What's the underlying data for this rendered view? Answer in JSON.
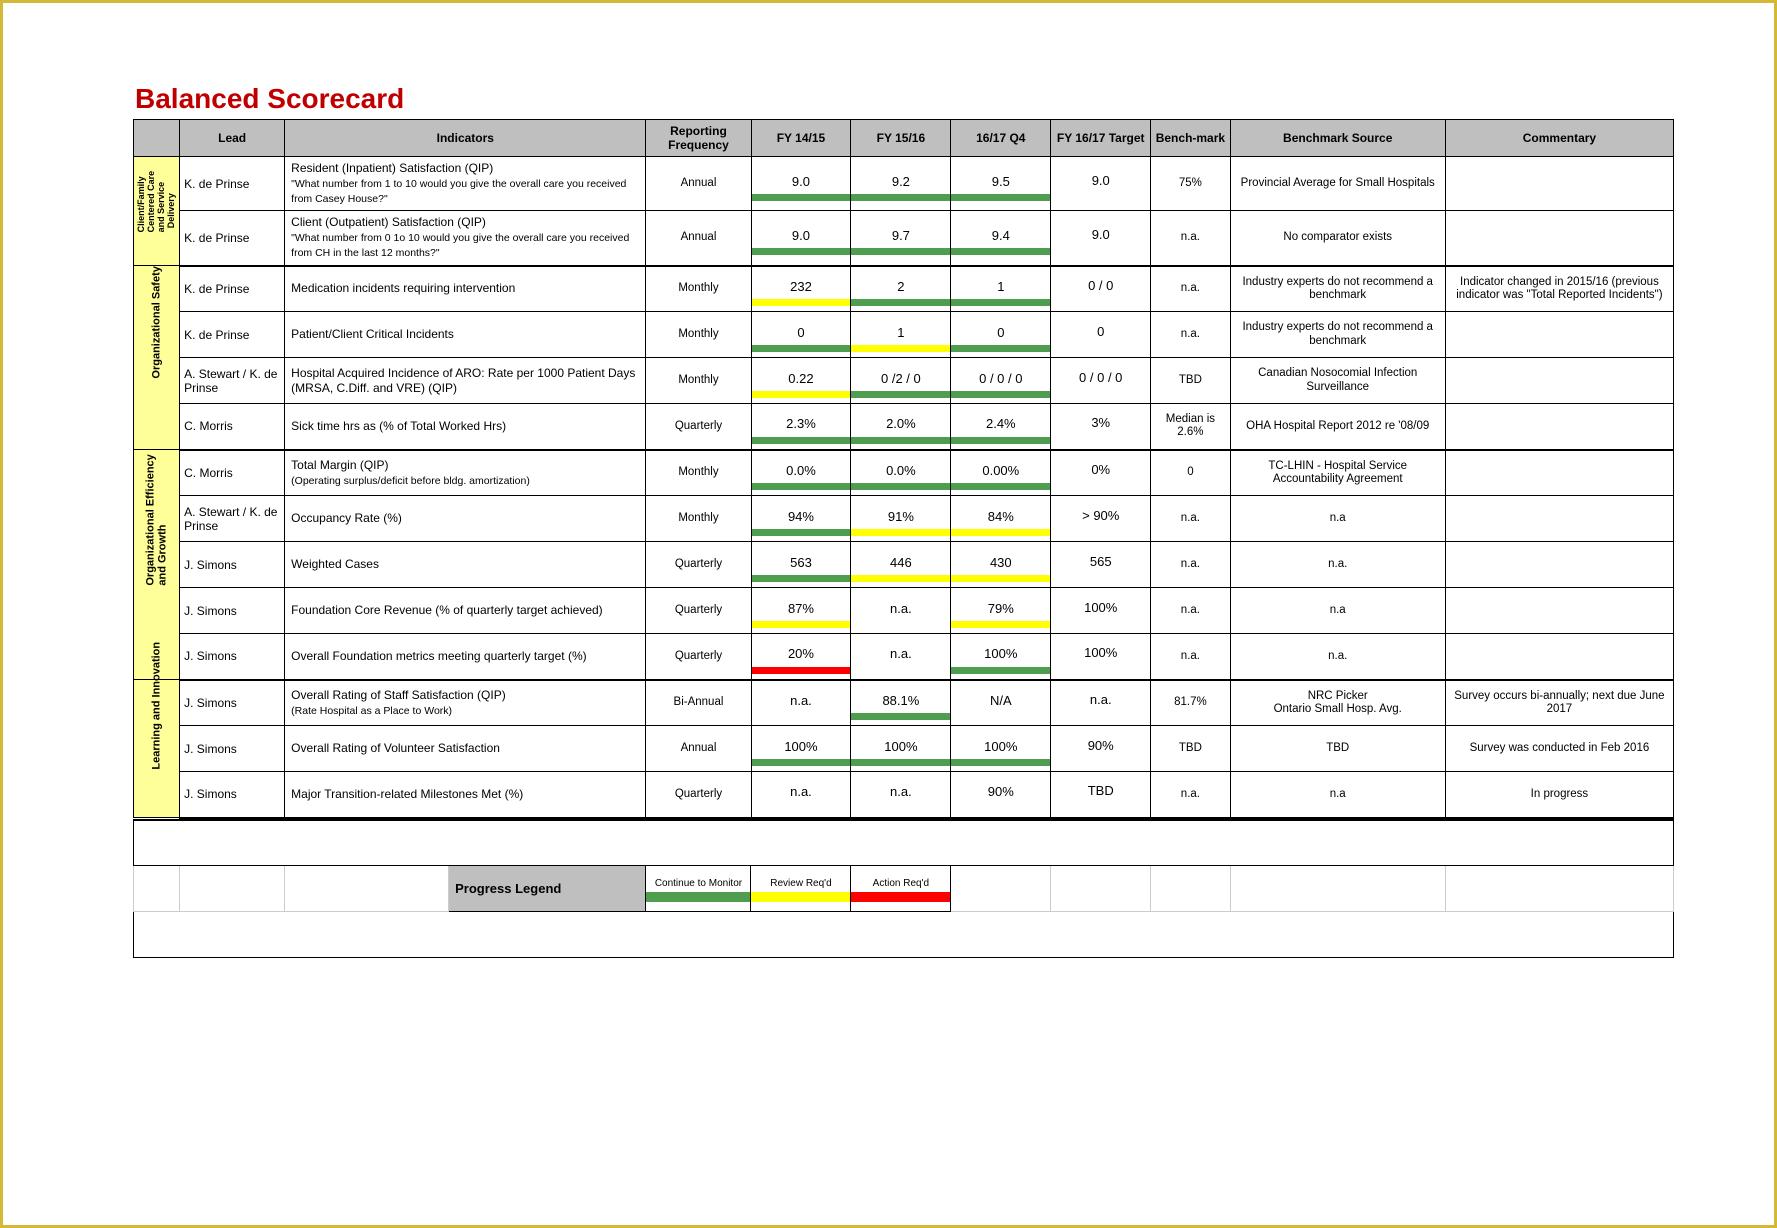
{
  "title": "Balanced Scorecard",
  "colors": {
    "green": "#4f9d4f",
    "yellow": "#ffff00",
    "red": "#ff0000",
    "header_bg": "#bfbfbf",
    "cat_bg": "#ffff99",
    "white": "#ffffff"
  },
  "headers": {
    "lead": "Lead",
    "indicators": "Indicators",
    "freq": "Reporting Frequency",
    "fy1": "FY 14/15",
    "fy2": "FY 15/16",
    "fy3": "16/17 Q4",
    "target": "FY 16/17 Target",
    "benchmark": "Bench-mark",
    "bsource": "Benchmark Source",
    "commentary": "Commentary"
  },
  "categories": [
    {
      "id": "cat1",
      "label_lines": [
        "Client/Family",
        "Centered Care",
        "and Service",
        "Delivery"
      ],
      "rowspan": 2
    },
    {
      "id": "cat2",
      "label_lines": [
        "Organizational Safety"
      ],
      "rowspan": 4
    },
    {
      "id": "cat3",
      "label_lines": [
        "Organizational Efficiency",
        "and Growth"
      ],
      "rowspan": 5
    },
    {
      "id": "cat4",
      "label_lines": [
        "Learning and Innovation"
      ],
      "rowspan": 3
    }
  ],
  "rows": [
    {
      "cat": "cat1",
      "lead": "K. de Prinse",
      "ind_main": "Resident (Inpatient) Satisfaction (QIP)",
      "ind_sub": "\"What number from 1 to 10 would you give the overall care you received from Casey House?\"",
      "freq": "Annual",
      "fy1": {
        "v": "9.0",
        "c": "green"
      },
      "fy2": {
        "v": "9.2",
        "c": "green"
      },
      "fy3": {
        "v": "9.5",
        "c": "green"
      },
      "target": "9.0",
      "benchmark": "75%",
      "bsource": "Provincial Average for Small Hospitals",
      "commentary": ""
    },
    {
      "cat": "cat1",
      "cat_last": true,
      "lead": "K. de Prinse",
      "ind_main": "Client (Outpatient) Satisfaction (QIP)",
      "ind_sub": "\"What number from 0 1o 10 would you give the overall care you received from CH in the last 12 months?\"",
      "freq": "Annual",
      "fy1": {
        "v": "9.0",
        "c": "green"
      },
      "fy2": {
        "v": "9.7",
        "c": "green"
      },
      "fy3": {
        "v": "9.4",
        "c": "green"
      },
      "target": "9.0",
      "benchmark": "n.a.",
      "bsource": "No comparator exists",
      "commentary": ""
    },
    {
      "cat": "cat2",
      "lead": "K. de Prinse",
      "ind_main": "Medication incidents requiring intervention",
      "ind_sub": "",
      "freq": "Monthly",
      "fy1": {
        "v": "232",
        "c": "yellow"
      },
      "fy2": {
        "v": "2",
        "c": "green"
      },
      "fy3": {
        "v": "1",
        "c": "green"
      },
      "target": "0 / 0",
      "benchmark": "n.a.",
      "bsource": "Industry experts do not recommend a benchmark",
      "commentary": "Indicator changed in 2015/16 (previous indicator was \"Total Reported Incidents\")"
    },
    {
      "cat": "cat2",
      "lead": "K. de Prinse",
      "ind_main": "Patient/Client Critical Incidents",
      "ind_sub": "",
      "freq": "Monthly",
      "fy1": {
        "v": "0",
        "c": "green"
      },
      "fy2": {
        "v": "1",
        "c": "yellow"
      },
      "fy3": {
        "v": "0",
        "c": "green"
      },
      "target": "0",
      "benchmark": "n.a.",
      "bsource": "Industry experts do not recommend a benchmark",
      "commentary": ""
    },
    {
      "cat": "cat2",
      "lead": "A. Stewart / K. de Prinse",
      "ind_main": "Hospital Acquired Incidence of ARO: Rate per 1000 Patient Days (MRSA, C.Diff. and VRE) (QIP)",
      "ind_sub": "",
      "freq": "Monthly",
      "fy1": {
        "v": "0.22",
        "c": "yellow"
      },
      "fy2": {
        "v": "0 /2 / 0",
        "c": "green"
      },
      "fy3": {
        "v": "0 / 0 / 0",
        "c": "green"
      },
      "target": "0 / 0 / 0",
      "benchmark": "TBD",
      "bsource": "Canadian Nosocomial Infection Surveillance",
      "commentary": ""
    },
    {
      "cat": "cat2",
      "cat_last": true,
      "lead": "C. Morris",
      "ind_main": "Sick time hrs as (% of Total Worked Hrs)",
      "ind_sub": "",
      "freq": "Quarterly",
      "fy1": {
        "v": "2.3%",
        "c": "green"
      },
      "fy2": {
        "v": "2.0%",
        "c": "green"
      },
      "fy3": {
        "v": "2.4%",
        "c": "green"
      },
      "target": "3%",
      "benchmark": "Median is 2.6%",
      "bsource": "OHA Hospital Report 2012 re '08/09",
      "commentary": ""
    },
    {
      "cat": "cat3",
      "lead": "C. Morris",
      "ind_main": "Total Margin (QIP)",
      "ind_sub": "(Operating surplus/deficit before bldg. amortization)",
      "freq": "Monthly",
      "fy1": {
        "v": "0.0%",
        "c": "green"
      },
      "fy2": {
        "v": "0.0%",
        "c": "green"
      },
      "fy3": {
        "v": "0.00%",
        "c": "green"
      },
      "target": "0%",
      "benchmark": "0",
      "bsource": "TC-LHIN - Hospital Service Accountability Agreement",
      "commentary": ""
    },
    {
      "cat": "cat3",
      "lead": "A. Stewart / K. de Prinse",
      "ind_main": "Occupancy Rate (%)",
      "ind_sub": "",
      "freq": "Monthly",
      "fy1": {
        "v": "94%",
        "c": "green"
      },
      "fy2": {
        "v": "91%",
        "c": "yellow"
      },
      "fy3": {
        "v": "84%",
        "c": "yellow"
      },
      "target": "> 90%",
      "benchmark": "n.a.",
      "bsource": "n.a",
      "commentary": ""
    },
    {
      "cat": "cat3",
      "lead": "J. Simons",
      "ind_main": "Weighted Cases",
      "ind_sub": "",
      "freq": "Quarterly",
      "fy1": {
        "v": "563",
        "c": "green"
      },
      "fy2": {
        "v": "446",
        "c": "yellow"
      },
      "fy3": {
        "v": "430",
        "c": "yellow"
      },
      "target": "565",
      "benchmark": "n.a.",
      "bsource": "n.a.",
      "commentary": ""
    },
    {
      "cat": "cat3",
      "lead": "J. Simons",
      "ind_main": "Foundation Core Revenue (% of quarterly target achieved)",
      "ind_sub": "",
      "freq": "Quarterly",
      "fy1": {
        "v": "87%",
        "c": "yellow"
      },
      "fy2": {
        "v": "n.a.",
        "c": "white"
      },
      "fy3": {
        "v": "79%",
        "c": "yellow"
      },
      "target": "100%",
      "benchmark": "n.a.",
      "bsource": "n.a",
      "commentary": ""
    },
    {
      "cat": "cat3",
      "cat_last": true,
      "lead": "J. Simons",
      "ind_main": "Overall Foundation metrics meeting quarterly target (%)",
      "ind_sub": "",
      "freq": "Quarterly",
      "fy1": {
        "v": "20%",
        "c": "red"
      },
      "fy2": {
        "v": "n.a.",
        "c": "white"
      },
      "fy3": {
        "v": "100%",
        "c": "green"
      },
      "target": "100%",
      "benchmark": "n.a.",
      "bsource": "n.a.",
      "commentary": ""
    },
    {
      "cat": "cat4",
      "lead": "J. Simons",
      "ind_main": "Overall Rating of Staff Satisfaction (QIP)",
      "ind_sub": "(Rate Hospital as a Place to Work)",
      "freq": "Bi-Annual",
      "fy1": {
        "v": "n.a.",
        "c": "white"
      },
      "fy2": {
        "v": "88.1%",
        "c": "green"
      },
      "fy3": {
        "v": "N/A",
        "c": "white"
      },
      "target": "n.a.",
      "benchmark": "81.7%",
      "bsource": "NRC Picker\nOntario Small Hosp. Avg.",
      "commentary": "Survey occurs bi-annually; next due June 2017"
    },
    {
      "cat": "cat4",
      "lead": "J. Simons",
      "ind_main": "Overall Rating of Volunteer Satisfaction",
      "ind_sub": "",
      "freq": "Annual",
      "fy1": {
        "v": "100%",
        "c": "green"
      },
      "fy2": {
        "v": "100%",
        "c": "green"
      },
      "fy3": {
        "v": "100%",
        "c": "green"
      },
      "target": "90%",
      "benchmark": "TBD",
      "bsource": "TBD",
      "commentary": "Survey was conducted in Feb 2016"
    },
    {
      "cat": "cat4",
      "cat_last": true,
      "lead": "J. Simons",
      "ind_main": "Major Transition-related Milestones Met (%)",
      "ind_sub": "",
      "freq": "Quarterly",
      "fy1": {
        "v": "n.a.",
        "c": "white"
      },
      "fy2": {
        "v": "n.a.",
        "c": "white"
      },
      "fy3": {
        "v": "90%",
        "c": "white"
      },
      "target": "TBD",
      "benchmark": "n.a.",
      "bsource": "n.a",
      "commentary": "In progress"
    }
  ],
  "legend": {
    "label": "Progress Legend",
    "items": [
      {
        "text": "Continue to Monitor",
        "c": "green"
      },
      {
        "text": "Review Req'd",
        "c": "yellow"
      },
      {
        "text": "Action Req'd",
        "c": "red"
      }
    ]
  }
}
